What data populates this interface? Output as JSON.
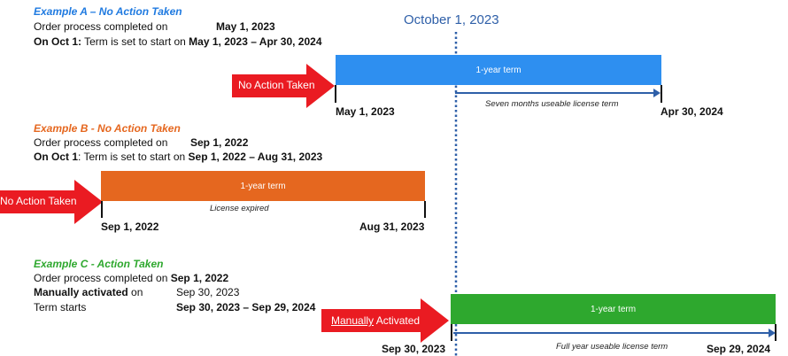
{
  "divider": {
    "label": "October 1, 2023"
  },
  "colors": {
    "blue": "#2e8ff0",
    "orange": "#e5671f",
    "green": "#2ea82e",
    "red": "#ea1b22",
    "line_blue": "#2e5fa8"
  },
  "example_a": {
    "title": "Example A – No Action Taken",
    "line1_label": "Order process completed on",
    "line1_value": "May 1, 2023",
    "line2_prefix": "On Oct 1:",
    "line2_mid": " Term is set to start on ",
    "line2_value": "May 1, 2023 – Apr 30, 2024",
    "arrow_label": "No Action Taken",
    "bar_label": "1-year term",
    "start_date": "May 1, 2023",
    "end_date": "Apr 30, 2024",
    "note": "Seven months useable license term"
  },
  "example_b": {
    "title": "Example B - No Action Taken",
    "line1_label": "Order process completed on",
    "line1_value": "Sep 1, 2022",
    "line2_prefix": "On Oct 1",
    "line2_mid": ": Term is set to start on ",
    "line2_value": "Sep 1, 2022 – Aug 31, 2023",
    "arrow_label": "No Action Taken",
    "bar_label": "1-year term",
    "start_date": "Sep 1, 2022",
    "end_date": "Aug 31, 2023",
    "note": "License expired"
  },
  "example_c": {
    "title": "Example C - Action Taken",
    "line1_label": "Order process completed on ",
    "line1_value": "Sep 1, 2022",
    "line2_label": "Manually activated",
    "line2_label_suffix": " on",
    "line2_value": "Sep 30, 2023",
    "line3_label": "Term starts",
    "line3_value": "Sep 30, 2023 –  Sep 29, 2024",
    "arrow_label_underlined": "Manually",
    "arrow_label_rest": " Activated",
    "bar_label": "1-year term",
    "start_date": "Sep 30, 2023",
    "end_date": "Sep 29, 2024",
    "note": "Full year useable license term"
  }
}
